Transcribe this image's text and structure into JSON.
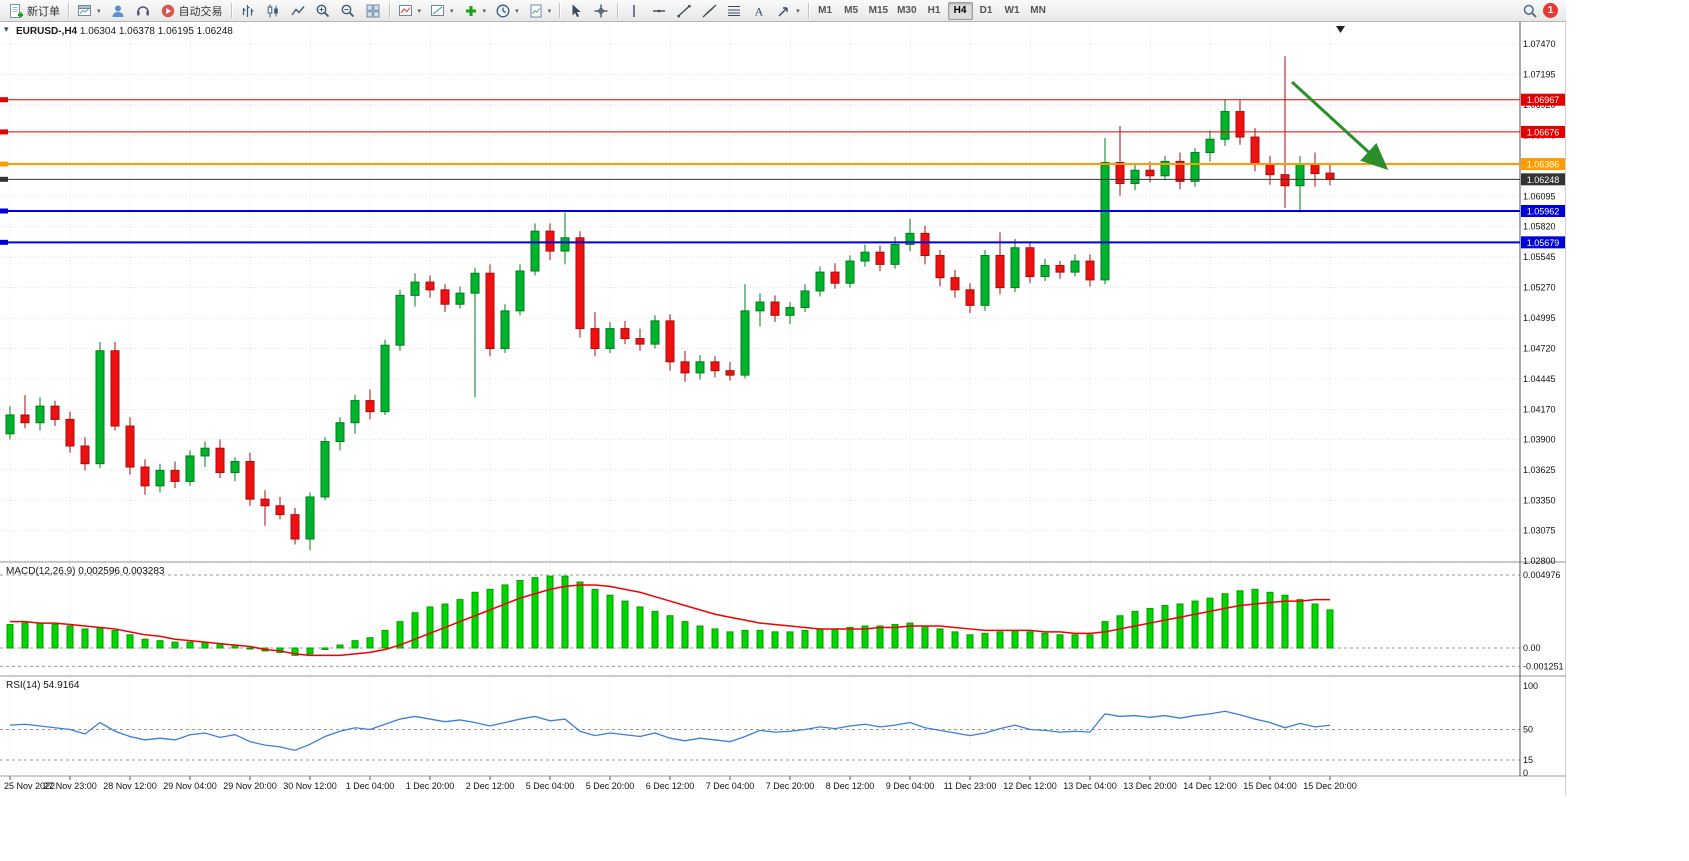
{
  "toolbar": {
    "new_order_label": "新订单",
    "algo_trading_label": "自动交易",
    "timeframes": [
      "M1",
      "M5",
      "M15",
      "M30",
      "H1",
      "H4",
      "D1",
      "W1",
      "MN"
    ],
    "active_timeframe": "H4",
    "notification_count": "1"
  },
  "chart": {
    "title_symbol": "EURUSD-,H4",
    "title_ohlc": "1.06304 1.06378 1.06195 1.06248"
  },
  "chart_data": {
    "type": "candlestick",
    "symbol": "EURUSD-",
    "timeframe": "H4",
    "current_bar": {
      "open": 1.06304,
      "high": 1.06378,
      "low": 1.06195,
      "close": 1.06248
    },
    "colors": {
      "up": "#00b32c",
      "up_dark": "#007d1e",
      "down": "#ef1010",
      "down_dark": "#a80c0c",
      "grid": "#e0e0e0"
    },
    "price_axis": [
      1.0747,
      1.07195,
      1.0692,
      1.06645,
      1.0637,
      1.06095,
      1.0582,
      1.05545,
      1.0527,
      1.04995,
      1.0472,
      1.04445,
      1.0417,
      1.039,
      1.03625,
      1.0335,
      1.03075,
      1.028
    ],
    "time_axis": [
      "25 Nov 2022",
      "27 Nov 23:00",
      "28 Nov 12:00",
      "29 Nov 04:00",
      "29 Nov 20:00",
      "30 Nov 12:00",
      "1 Dec 04:00",
      "1 Dec 20:00",
      "2 Dec 12:00",
      "5 Dec 04:00",
      "5 Dec 20:00",
      "6 Dec 12:00",
      "7 Dec 04:00",
      "7 Dec 20:00",
      "8 Dec 12:00",
      "9 Dec 04:00",
      "11 Dec 23:00",
      "12 Dec 12:00",
      "13 Dec 04:00",
      "13 Dec 20:00",
      "14 Dec 12:00",
      "15 Dec 04:00",
      "15 Dec 20:00"
    ],
    "levels": [
      {
        "price": 1.06967,
        "color": "#e30000",
        "type": "resistance"
      },
      {
        "price": 1.06676,
        "color": "#e30000",
        "type": "resistance"
      },
      {
        "price": 1.06386,
        "color": "#ff9d00",
        "type": "pivot"
      },
      {
        "price": 1.06248,
        "color": "#333333",
        "type": "current-price"
      },
      {
        "price": 1.05962,
        "color": "#0000dd",
        "type": "support"
      },
      {
        "price": 1.05679,
        "color": "#0000dd",
        "type": "support"
      }
    ],
    "annotation_arrow": {
      "color": "#2a8f2a",
      "direction": "down-right"
    },
    "candles": [
      [
        1.0395,
        1.042,
        1.039,
        1.0412
      ],
      [
        1.0412,
        1.043,
        1.04,
        1.0405
      ],
      [
        1.0405,
        1.0428,
        1.0398,
        1.042
      ],
      [
        1.042,
        1.0425,
        1.0402,
        1.0408
      ],
      [
        1.0408,
        1.0415,
        1.0378,
        1.0384
      ],
      [
        1.0384,
        1.0392,
        1.0362,
        1.0368
      ],
      [
        1.0368,
        1.0478,
        1.0364,
        1.047
      ],
      [
        1.047,
        1.0478,
        1.0398,
        1.0402
      ],
      [
        1.0402,
        1.041,
        1.0358,
        1.0365
      ],
      [
        1.0365,
        1.0372,
        1.034,
        1.0348
      ],
      [
        1.0348,
        1.0368,
        1.0342,
        1.0362
      ],
      [
        1.0362,
        1.037,
        1.0346,
        1.0352
      ],
      [
        1.0352,
        1.038,
        1.0348,
        1.0375
      ],
      [
        1.0375,
        1.0388,
        1.0365,
        1.0382
      ],
      [
        1.0382,
        1.039,
        1.0355,
        1.036
      ],
      [
        1.036,
        1.0374,
        1.0352,
        1.037
      ],
      [
        1.037,
        1.0378,
        1.033,
        1.0336
      ],
      [
        1.0336,
        1.0344,
        1.0312,
        1.033
      ],
      [
        1.033,
        1.0338,
        1.0318,
        1.0322
      ],
      [
        1.0322,
        1.0328,
        1.0295,
        1.03
      ],
      [
        1.03,
        1.0342,
        1.029,
        1.0338
      ],
      [
        1.0338,
        1.0392,
        1.0335,
        1.0388
      ],
      [
        1.0388,
        1.041,
        1.038,
        1.0405
      ],
      [
        1.0405,
        1.043,
        1.0395,
        1.0425
      ],
      [
        1.0425,
        1.0435,
        1.0408,
        1.0415
      ],
      [
        1.0415,
        1.048,
        1.0412,
        1.0475
      ],
      [
        1.0475,
        1.0525,
        1.047,
        1.052
      ],
      [
        1.052,
        1.054,
        1.051,
        1.0532
      ],
      [
        1.0532,
        1.0538,
        1.0518,
        1.0525
      ],
      [
        1.0525,
        1.053,
        1.0505,
        1.0512
      ],
      [
        1.0512,
        1.0528,
        1.0508,
        1.0522
      ],
      [
        1.0522,
        1.0545,
        1.0428,
        1.054
      ],
      [
        1.054,
        1.0548,
        1.0465,
        1.0472
      ],
      [
        1.0472,
        1.0512,
        1.0468,
        1.0506
      ],
      [
        1.0506,
        1.0548,
        1.0502,
        1.0542
      ],
      [
        1.0542,
        1.0585,
        1.0538,
        1.0578
      ],
      [
        1.0578,
        1.0585,
        1.0552,
        1.056
      ],
      [
        1.056,
        1.0595,
        1.0548,
        1.0572
      ],
      [
        1.0572,
        1.0578,
        1.0482,
        1.049
      ],
      [
        1.049,
        1.0505,
        1.0465,
        1.0472
      ],
      [
        1.0472,
        1.0496,
        1.0468,
        1.049
      ],
      [
        1.049,
        1.0497,
        1.0476,
        1.0481
      ],
      [
        1.0481,
        1.049,
        1.047,
        1.0476
      ],
      [
        1.0476,
        1.0502,
        1.0472,
        1.0497
      ],
      [
        1.0497,
        1.0503,
        1.0452,
        1.046
      ],
      [
        1.046,
        1.047,
        1.0442,
        1.045
      ],
      [
        1.045,
        1.0466,
        1.0444,
        1.046
      ],
      [
        1.046,
        1.0465,
        1.0446,
        1.0452
      ],
      [
        1.0452,
        1.046,
        1.0443,
        1.0448
      ],
      [
        1.0448,
        1.053,
        1.0445,
        1.0506
      ],
      [
        1.0506,
        1.0522,
        1.0492,
        1.0514
      ],
      [
        1.0514,
        1.052,
        1.0496,
        1.0502
      ],
      [
        1.0502,
        1.0514,
        1.0494,
        1.0509
      ],
      [
        1.0509,
        1.053,
        1.0505,
        1.0524
      ],
      [
        1.0524,
        1.0546,
        1.0519,
        1.0541
      ],
      [
        1.0541,
        1.0549,
        1.0526,
        1.0531
      ],
      [
        1.0531,
        1.0556,
        1.0527,
        1.0551
      ],
      [
        1.0551,
        1.0566,
        1.0546,
        1.0559
      ],
      [
        1.0559,
        1.0565,
        1.0542,
        1.0548
      ],
      [
        1.0548,
        1.0573,
        1.0544,
        1.0566
      ],
      [
        1.0566,
        1.0589,
        1.056,
        1.0576
      ],
      [
        1.0576,
        1.0583,
        1.0548,
        1.0556
      ],
      [
        1.0556,
        1.0561,
        1.0528,
        1.0536
      ],
      [
        1.0536,
        1.0543,
        1.0518,
        1.0525
      ],
      [
        1.0525,
        1.0531,
        1.0504,
        1.0511
      ],
      [
        1.0511,
        1.0561,
        1.0506,
        1.0556
      ],
      [
        1.0556,
        1.0577,
        1.0521,
        1.0527
      ],
      [
        1.0527,
        1.0571,
        1.0523,
        1.0563
      ],
      [
        1.0563,
        1.0569,
        1.0531,
        1.0537
      ],
      [
        1.0537,
        1.0553,
        1.0533,
        1.0547
      ],
      [
        1.0547,
        1.0551,
        1.0535,
        1.0541
      ],
      [
        1.0541,
        1.0557,
        1.0537,
        1.0551
      ],
      [
        1.0551,
        1.0557,
        1.0528,
        1.0534
      ],
      [
        1.0534,
        1.0662,
        1.053,
        1.064
      ],
      [
        1.064,
        1.0673,
        1.061,
        1.0621
      ],
      [
        1.0621,
        1.0639,
        1.0615,
        1.0633
      ],
      [
        1.0633,
        1.0641,
        1.0622,
        1.0628
      ],
      [
        1.0628,
        1.0646,
        1.0624,
        1.0641
      ],
      [
        1.0641,
        1.0649,
        1.0616,
        1.0623
      ],
      [
        1.0623,
        1.0653,
        1.0618,
        1.0649
      ],
      [
        1.0649,
        1.0669,
        1.0641,
        1.0661
      ],
      [
        1.0661,
        1.0697,
        1.0655,
        1.0686
      ],
      [
        1.0686,
        1.0696,
        1.0656,
        1.0663
      ],
      [
        1.0663,
        1.0671,
        1.0632,
        1.0639
      ],
      [
        1.0639,
        1.0646,
        1.062,
        1.0629
      ],
      [
        1.0629,
        1.0736,
        1.0599,
        1.0619
      ],
      [
        1.0619,
        1.0646,
        1.0595,
        1.0639
      ],
      [
        1.0639,
        1.0649,
        1.0618,
        1.063
      ],
      [
        1.06304,
        1.06378,
        1.06195,
        1.06248
      ]
    ],
    "macd": {
      "label": "MACD(12,26,9)",
      "value_main": "0.002596",
      "value_signal": "0.003283",
      "axis": [
        "0.004976",
        "0.00",
        "-0.001251"
      ],
      "histogram": [
        0.0016,
        0.0017,
        0.0017,
        0.0016,
        0.0015,
        0.0013,
        0.0014,
        0.0012,
        0.0009,
        0.0006,
        0.0005,
        0.0004,
        0.0004,
        0.0004,
        0.0003,
        0.0002,
        0.0,
        -0.0002,
        -0.0003,
        -0.0005,
        -0.0004,
        -0.0001,
        0.0002,
        0.0005,
        0.0007,
        0.0012,
        0.0018,
        0.0024,
        0.0028,
        0.003,
        0.0033,
        0.0038,
        0.004,
        0.0043,
        0.0046,
        0.0048,
        0.0049,
        0.0049,
        0.0045,
        0.004,
        0.0036,
        0.0032,
        0.0028,
        0.0025,
        0.0022,
        0.0018,
        0.0015,
        0.0013,
        0.0011,
        0.0012,
        0.0012,
        0.0011,
        0.0011,
        0.0012,
        0.0013,
        0.0013,
        0.0014,
        0.0015,
        0.0015,
        0.0016,
        0.0017,
        0.0015,
        0.0013,
        0.0011,
        0.0009,
        0.001,
        0.0011,
        0.0012,
        0.0011,
        0.001,
        0.0009,
        0.0009,
        0.0009,
        0.0018,
        0.0022,
        0.0025,
        0.0027,
        0.0029,
        0.003,
        0.0032,
        0.0034,
        0.0037,
        0.0039,
        0.004,
        0.0038,
        0.0036,
        0.0033,
        0.003,
        0.0026
      ],
      "signal": [
        0.0018,
        0.0018,
        0.0017,
        0.0017,
        0.0016,
        0.0015,
        0.0014,
        0.0013,
        0.0011,
        0.0009,
        0.0008,
        0.0006,
        0.0005,
        0.0004,
        0.0003,
        0.0002,
        0.0001,
        -0.0001,
        -0.0002,
        -0.0004,
        -0.0005,
        -0.0005,
        -0.0005,
        -0.0004,
        -0.0003,
        -0.0001,
        0.0002,
        0.0006,
        0.001,
        0.0014,
        0.0018,
        0.0022,
        0.0026,
        0.003,
        0.0034,
        0.0037,
        0.004,
        0.0042,
        0.0043,
        0.0043,
        0.0042,
        0.004,
        0.0038,
        0.0035,
        0.0032,
        0.0029,
        0.0026,
        0.0023,
        0.0021,
        0.0019,
        0.0017,
        0.0016,
        0.0015,
        0.0014,
        0.0013,
        0.0013,
        0.0013,
        0.0013,
        0.0014,
        0.0014,
        0.0015,
        0.0015,
        0.0015,
        0.0014,
        0.0013,
        0.0012,
        0.0012,
        0.0012,
        0.0012,
        0.0011,
        0.0011,
        0.001,
        0.001,
        0.0011,
        0.0013,
        0.0015,
        0.0017,
        0.0019,
        0.0021,
        0.0023,
        0.0025,
        0.0027,
        0.0029,
        0.003,
        0.0031,
        0.0032,
        0.0032,
        0.0033,
        0.0033
      ]
    },
    "rsi": {
      "label": "RSI(14)",
      "value": "54.9164",
      "axis": [
        "100",
        "50",
        "15",
        "0"
      ],
      "values": [
        55,
        56,
        54,
        52,
        50,
        45,
        58,
        48,
        42,
        38,
        40,
        38,
        44,
        46,
        41,
        44,
        36,
        32,
        30,
        26,
        33,
        42,
        48,
        52,
        50,
        56,
        62,
        65,
        62,
        59,
        61,
        58,
        54,
        58,
        62,
        65,
        60,
        62,
        48,
        43,
        46,
        44,
        42,
        46,
        40,
        37,
        40,
        38,
        36,
        42,
        49,
        47,
        48,
        50,
        53,
        51,
        54,
        56,
        53,
        55,
        58,
        52,
        49,
        46,
        43,
        46,
        51,
        55,
        50,
        49,
        47,
        48,
        47,
        68,
        65,
        66,
        64,
        66,
        63,
        66,
        68,
        71,
        67,
        62,
        58,
        52,
        57,
        53,
        54.9164
      ]
    }
  }
}
